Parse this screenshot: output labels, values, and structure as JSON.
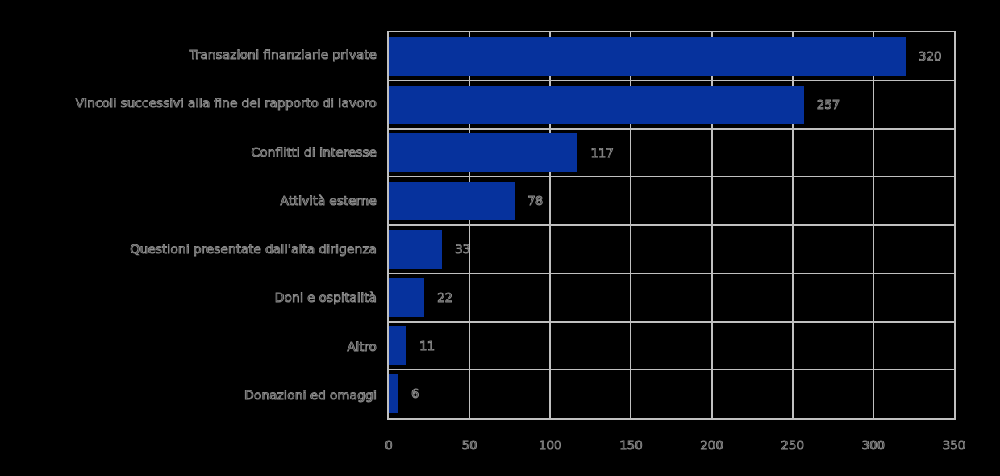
{
  "chart_data": {
    "type": "bar",
    "orientation": "horizontal",
    "title": "",
    "categories": [
      "Transazioni finanziarie private",
      "Vincoli successivi alla fine del rapporto di lavoro",
      "Conflitti di interesse",
      "Attività esterne",
      "Questioni presentate dall'alta dirigenza",
      "Doni e ospitalità",
      "Altro",
      "Donazioni ed omaggi"
    ],
    "values": [
      320,
      257,
      117,
      78,
      33,
      22,
      11,
      6
    ],
    "value_labels": [
      "320",
      "257",
      "117",
      "78",
      "33",
      "22",
      "11",
      "6"
    ],
    "xlabel": "",
    "ylabel": "",
    "xlim": [
      0,
      350
    ],
    "x_tick_values": [
      0,
      50,
      100,
      150,
      200,
      250,
      300,
      350
    ],
    "x_ticks": [
      "0",
      "50",
      "100",
      "150",
      "200",
      "250",
      "300",
      "350"
    ],
    "grid": "on",
    "legend": "none",
    "colors": {
      "bar": "#06329d",
      "grid": "#c0c0c0",
      "background": "#000000",
      "text_outline": "#8f8f8f"
    }
  }
}
